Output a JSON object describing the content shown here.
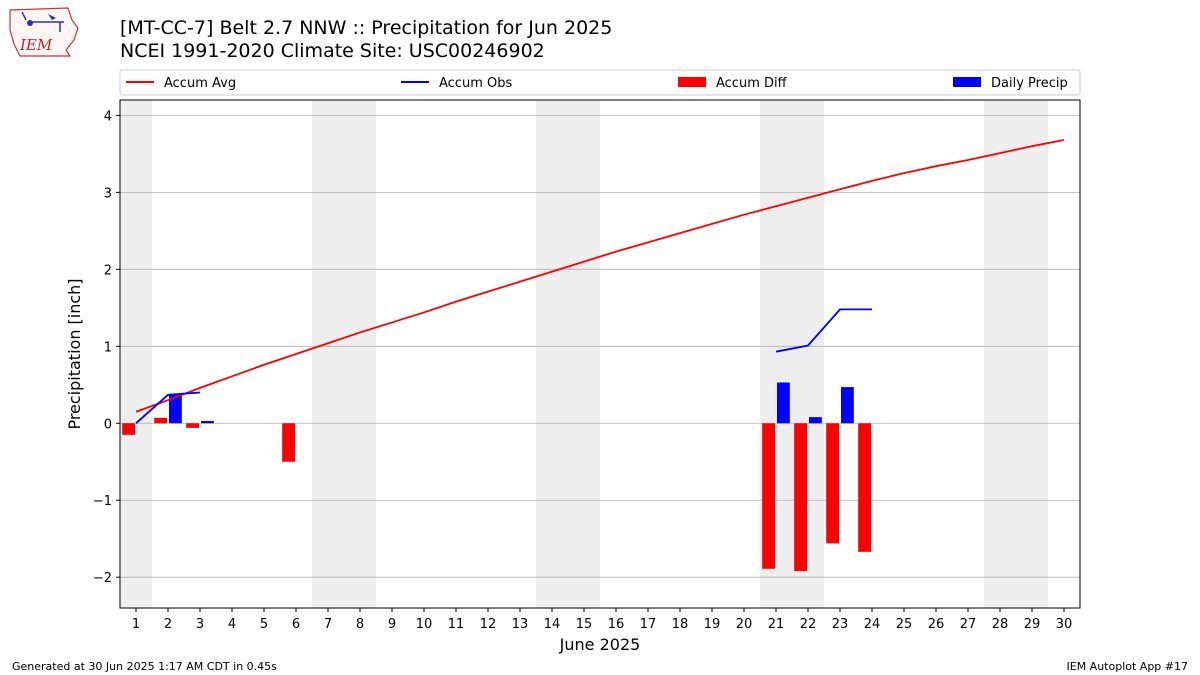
{
  "header": {
    "title_line1": "[MT-CC-7] Belt 2.7 NNW :: Precipitation for Jun 2025",
    "title_line2": "NCEI 1991-2020 Climate Site: USC00246902"
  },
  "logo": {
    "text": "IEM",
    "icon": "iem-iowa-map-logo"
  },
  "footer": {
    "left": "Generated at 30 Jun 2025 1:17 AM CDT in 0.45s",
    "right": "IEM Autoplot App #17"
  },
  "chart_data": {
    "type": "bar",
    "xlabel": "June 2025",
    "ylabel": "Precipitation [inch]",
    "xlim": [
      0.5,
      30.5
    ],
    "ylim": [
      -2.4,
      4.2
    ],
    "yticks": [
      -2,
      -1,
      0,
      1,
      2,
      3,
      4
    ],
    "x": [
      1,
      2,
      3,
      4,
      5,
      6,
      7,
      8,
      9,
      10,
      11,
      12,
      13,
      14,
      15,
      16,
      17,
      18,
      19,
      20,
      21,
      22,
      23,
      24,
      25,
      26,
      27,
      28,
      29,
      30
    ],
    "weekend_shading": [
      [
        0.5,
        1.5
      ],
      [
        6.5,
        8.5
      ],
      [
        13.5,
        15.5
      ],
      [
        20.5,
        22.5
      ],
      [
        27.5,
        29.5
      ]
    ],
    "grid": "horizontal",
    "legend_position": "top, above plot",
    "colors": {
      "avg": "#ff0000",
      "obs": "#0000ff",
      "diff": "#ff0000",
      "daily": "#0000ff",
      "shade": "#eeeeee",
      "grid": "#b0b0b0"
    },
    "series": [
      {
        "name": "Accum Avg",
        "kind": "line",
        "values": [
          0.15,
          0.3,
          0.46,
          0.61,
          0.76,
          0.9,
          1.04,
          1.18,
          1.31,
          1.44,
          1.58,
          1.71,
          1.84,
          1.97,
          2.1,
          2.23,
          2.35,
          2.47,
          2.59,
          2.71,
          2.82,
          2.93,
          3.04,
          3.15,
          3.25,
          3.34,
          3.42,
          3.51,
          3.6,
          3.68
        ]
      },
      {
        "name": "Accum Obs",
        "kind": "line",
        "segments": [
          {
            "x": [
              1,
              2,
              3
            ],
            "values": [
              0.0,
              0.37,
              0.4
            ]
          },
          {
            "x": [
              21,
              22,
              23,
              24
            ],
            "values": [
              0.93,
              1.01,
              1.48,
              1.48
            ]
          }
        ]
      },
      {
        "name": "Accum Diff",
        "kind": "bar",
        "offset": "left",
        "x": [
          1,
          2,
          3,
          6,
          21,
          22,
          23,
          24
        ],
        "values": [
          -0.15,
          0.07,
          -0.06,
          -0.5,
          -1.89,
          -1.92,
          -1.56,
          -1.67
        ]
      },
      {
        "name": "Daily Precip",
        "kind": "bar",
        "offset": "right",
        "x": [
          2,
          3,
          21,
          22,
          23
        ],
        "values": [
          0.37,
          0.03,
          0.53,
          0.08,
          0.47
        ]
      }
    ]
  }
}
